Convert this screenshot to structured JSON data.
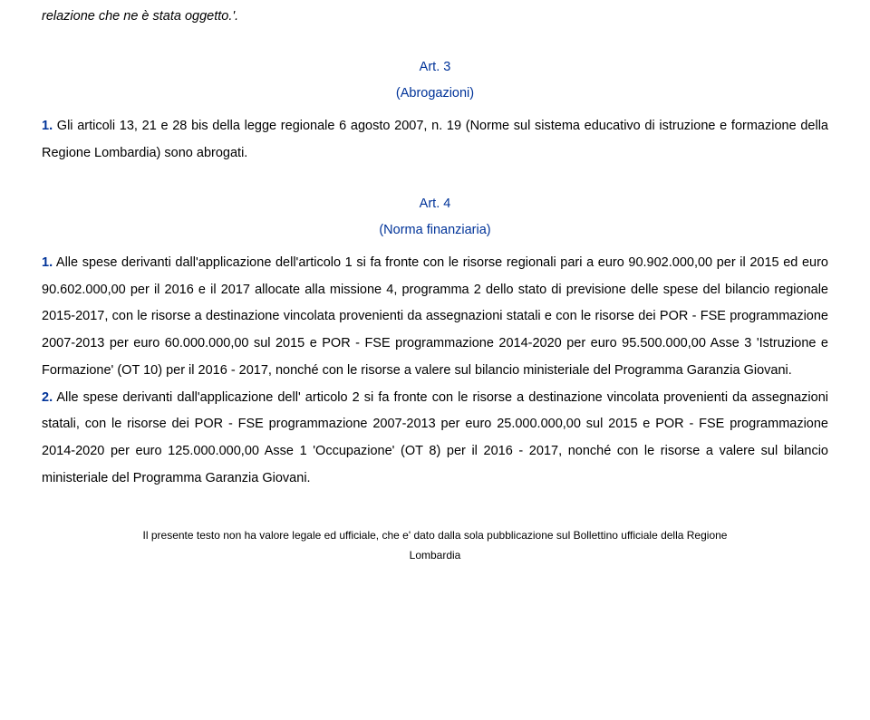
{
  "top_fragment": "relazione che ne è stata oggetto.'.",
  "art3": {
    "heading": "Art. 3",
    "subtitle": "(Abrogazioni)",
    "para1_lead": "1.",
    "para1_text": " Gli articoli 13, 21 e 28 bis della legge regionale 6 agosto 2007, n. 19 (Norme sul sistema educativo di istruzione e formazione della Regione Lombardia) sono abrogati."
  },
  "art4": {
    "heading": "Art. 4",
    "subtitle": "(Norma finanziaria)",
    "para1_lead": "1.",
    "para1_text": " Alle spese derivanti dall'applicazione dell'articolo 1 si fa fronte con le risorse regionali pari a euro 90.902.000,00 per il 2015 ed euro 90.602.000,00 per il 2016 e il 2017 allocate alla missione 4, programma 2 dello stato di previsione delle spese del bilancio regionale 2015-2017, con le risorse a destinazione vincolata provenienti da assegnazioni statali e con le risorse dei POR - FSE programmazione 2007-2013 per euro 60.000.000,00 sul 2015 e POR - FSE programmazione 2014-2020 per euro 95.500.000,00 Asse 3 'Istruzione e Formazione' (OT 10) per il 2016 - 2017, nonché con le risorse a valere sul bilancio ministeriale del Programma Garanzia Giovani.",
    "para2_lead": "2.",
    "para2_text": " Alle spese derivanti dall'applicazione dell' articolo 2 si fa fronte con le risorse a destinazione vincolata provenienti da assegnazioni statali, con le risorse dei POR - FSE programmazione 2007-2013 per euro 25.000.000,00 sul 2015 e POR - FSE programmazione 2014-2020 per euro 125.000.000,00 Asse 1 'Occupazione' (OT 8) per il 2016 - 2017, nonché con le risorse a valere sul bilancio ministeriale del Programma Garanzia Giovani."
  },
  "footer_line1": "Il presente testo non ha valore legale ed ufficiale, che e' dato dalla sola pubblicazione sul Bollettino ufficiale della Regione",
  "footer_line2": "Lombardia",
  "colors": {
    "blue": "#003399",
    "text": "#000000",
    "background": "#ffffff"
  },
  "fonts": {
    "body_family": "Arial",
    "body_size_pt": 11,
    "footer_size_pt": 9
  }
}
